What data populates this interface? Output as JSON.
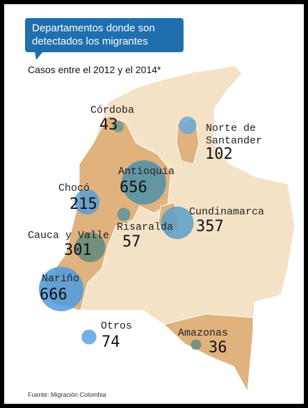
{
  "title": "Departamentos donde son detectados los migrantes",
  "subtitle": "Casos entre el 2012 y el 2014*",
  "source": "Fuente: Migración Colombia",
  "regions": [
    {
      "name": "Córdoba",
      "value": 43,
      "color": "#6a9a8a"
    },
    {
      "name": "Norte de Santander",
      "value": 102,
      "color": "#6aa8dc"
    },
    {
      "name": "Antioquia",
      "value": 656,
      "color": "#4d90a8"
    },
    {
      "name": "Chocó",
      "value": 215,
      "color": "#5a9ed6"
    },
    {
      "name": "Risaralda",
      "value": 57,
      "color": "#5b93a0"
    },
    {
      "name": "Cundinamarca",
      "value": 357,
      "color": "#5a9ec8"
    },
    {
      "name": "Cauca y Valle",
      "value": 301,
      "color": "#5f8a7a"
    },
    {
      "name": "Nariño",
      "value": 666,
      "color": "#4e9be0"
    },
    {
      "name": "Otros",
      "value": 74,
      "color": "#5aa2e6"
    },
    {
      "name": "Amazonas",
      "value": 36,
      "color": "#6b8a7a"
    }
  ]
}
